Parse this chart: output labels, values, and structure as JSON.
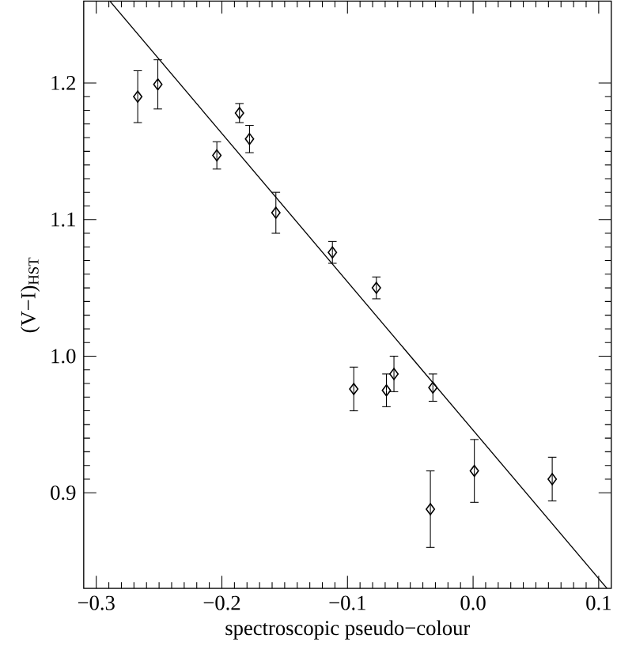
{
  "chart_data": {
    "type": "scatter",
    "xlabel": "spectroscopic pseudo−colour",
    "ylabel": "(V−I)$_{HST}$",
    "xlim": [
      -0.31,
      0.11
    ],
    "ylim": [
      0.83,
      1.26
    ],
    "xticks": [
      {
        "value": -0.3,
        "label": "−0.3"
      },
      {
        "value": -0.2,
        "label": "−0.2"
      },
      {
        "value": -0.1,
        "label": "−0.1"
      },
      {
        "value": 0,
        "label": "0.0"
      },
      {
        "value": 0.1,
        "label": "0.1"
      }
    ],
    "yticks": [
      0.9,
      {
        "value": 1.0,
        "label": "1.0"
      },
      1.1,
      1.2
    ],
    "series": [
      {
        "type": "scatter",
        "color": "#000000",
        "marker": "diamond",
        "x": [
          -0.267,
          -0.251,
          -0.204,
          -0.186,
          -0.178,
          -0.157,
          -0.112,
          -0.077,
          -0.095,
          -0.069,
          -0.063,
          -0.032,
          -0.034,
          0.001,
          0.063
        ],
        "values": [
          1.19,
          1.199,
          1.147,
          1.178,
          1.159,
          1.105,
          1.076,
          1.05,
          0.976,
          0.975,
          0.987,
          0.977,
          0.888,
          0.916,
          0.91
        ],
        "errors": [
          0.019,
          0.018,
          0.01,
          0.007,
          0.01,
          0.015,
          0.008,
          0.008,
          0.016,
          0.012,
          0.013,
          0.01,
          0.028,
          0.023,
          0.016
        ]
      },
      {
        "type": "line",
        "color": "#000000",
        "marker": "none",
        "x": [
          -0.2892,
          0.1066
        ],
        "values": [
          1.26,
          0.83
        ]
      }
    ]
  }
}
